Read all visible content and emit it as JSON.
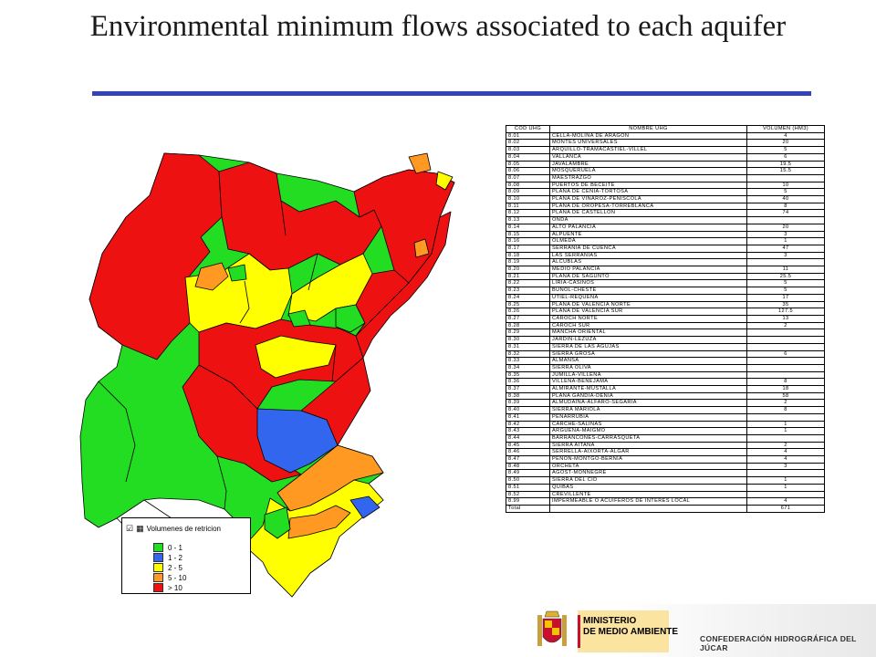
{
  "slide": {
    "title": "Environmental minimum flows associated to each aquifer"
  },
  "legend": {
    "title": "Volumenes de retricion",
    "items": [
      {
        "label": "0 - 1",
        "color": "#22dd22"
      },
      {
        "label": "1 - 2",
        "color": "#3366ee"
      },
      {
        "label": "2 - 5",
        "color": "#ffff00"
      },
      {
        "label": "5 - 10",
        "color": "#ff9922"
      },
      {
        "label": "> 10",
        "color": "#ee1111"
      }
    ]
  },
  "table": {
    "headers": [
      "COD UHG",
      "NOMBRE UHG",
      "VOLUMEN (HM3)"
    ],
    "rows": [
      [
        "8.01",
        "CELLA-MOLINA DE ARAGON",
        "4"
      ],
      [
        "8.02",
        "MONTES UNIVERSALES",
        "20"
      ],
      [
        "8.03",
        "ARQUILLO-TRAMACASTIEL-VILLEL",
        "5"
      ],
      [
        "8.04",
        "VALLANCA",
        "6"
      ],
      [
        "8.05",
        "JAVALAMBRE",
        "19.5"
      ],
      [
        "8.06",
        "MOSQUERUELA",
        "15.5"
      ],
      [
        "8.07",
        "MAESTRAZGO",
        ""
      ],
      [
        "8.08",
        "PUERTOS DE BECEITE",
        "10"
      ],
      [
        "8.09",
        "PLANA DE CENIA-TORTOSA",
        "5"
      ],
      [
        "8.10",
        "PLANA DE VINAROZ-PEÑISCOLA",
        "40"
      ],
      [
        "8.11",
        "PLANA DE OROPESA-TORREBLANCA",
        "8"
      ],
      [
        "8.12",
        "PLANA DE CASTELLON",
        "74"
      ],
      [
        "8.13",
        "ONDA",
        ""
      ],
      [
        "8.14",
        "ALTO PALANCIA",
        "20"
      ],
      [
        "8.15",
        "ALPUENTE",
        "3"
      ],
      [
        "8.16",
        "OLMEDA",
        "1"
      ],
      [
        "8.17",
        "SERRANIA DE CUENCA",
        "47"
      ],
      [
        "8.18",
        "LAS SERRANIAS",
        "3"
      ],
      [
        "8.19",
        "ALCUBLAS",
        ""
      ],
      [
        "8.20",
        "MEDIO PALANCIA",
        "11"
      ],
      [
        "8.21",
        "PLANA DE SAGUNTO",
        "25.5"
      ],
      [
        "8.22",
        "LIRIA-CASINOS",
        "5"
      ],
      [
        "8.23",
        "BUÑOL-CHESTE",
        "5"
      ],
      [
        "8.24",
        "UTIEL-REQUENA",
        "17"
      ],
      [
        "8.25",
        "PLANA DE VALENCIA NORTE",
        "35"
      ],
      [
        "8.26",
        "PLANA DE VALENCIA SUR",
        "127.5"
      ],
      [
        "8.27",
        "CAROCH NORTE",
        "13"
      ],
      [
        "8.28",
        "CAROCH SUR",
        "2"
      ],
      [
        "8.29",
        "MANCHA ORIENTAL",
        ""
      ],
      [
        "8.30",
        "JARDIN-LEZUZA",
        ""
      ],
      [
        "8.31",
        "SIERRA DE LAS AGUJAS",
        ""
      ],
      [
        "8.32",
        "SIERRA GROSA",
        "6"
      ],
      [
        "8.33",
        "ALMANSA",
        ""
      ],
      [
        "8.34",
        "SIERRA OLIVA",
        ""
      ],
      [
        "8.35",
        "JUMILLA-VILLENA",
        ""
      ],
      [
        "8.36",
        "VILLENA-BENEJAMA",
        "8"
      ],
      [
        "8.37",
        "ALMIRANTE-MUSTALLA",
        "18"
      ],
      [
        "8.38",
        "PLANA GANDIA-DENIA",
        "58"
      ],
      [
        "8.39",
        "ALMUDAINA-ALFARO-SEGARIA",
        "2"
      ],
      [
        "8.40",
        "SIERRA MARIOLA",
        "8"
      ],
      [
        "8.41",
        "PEÑARRUBIA",
        ""
      ],
      [
        "8.42",
        "CARCHE-SALINAS",
        "1"
      ],
      [
        "8.43",
        "ARGUEÑA-MAIGMO",
        "1"
      ],
      [
        "8.44",
        "BARRANCONES-CARRASQUETA",
        ""
      ],
      [
        "8.45",
        "SIERRA AITANA",
        "2"
      ],
      [
        "8.46",
        "SERRELLA-AIXORTA-ALGAR",
        "4"
      ],
      [
        "8.47",
        "PEÑON-MONTGO-BERNIA",
        "4"
      ],
      [
        "8.48",
        "ORCHETA",
        "3"
      ],
      [
        "8.49",
        "AGOST-MONNEGRE",
        ""
      ],
      [
        "8.50",
        "SIERRA DEL CID",
        "1"
      ],
      [
        "8.51",
        "QUIBAS",
        "1"
      ],
      [
        "8.52",
        "CREVILLENTE",
        ""
      ],
      [
        "8.99",
        "IMPERMEABLE O ACUIFEROS DE INTERES LOCAL",
        "4"
      ],
      [
        "Total",
        "",
        "671"
      ]
    ]
  },
  "footer": {
    "ministry_line1": "MINISTERIO",
    "ministry_line2": "DE MEDIO AMBIENTE",
    "confederation": "CONFEDERACIÓN HIDROGRÁFICA DEL JÚCAR"
  }
}
